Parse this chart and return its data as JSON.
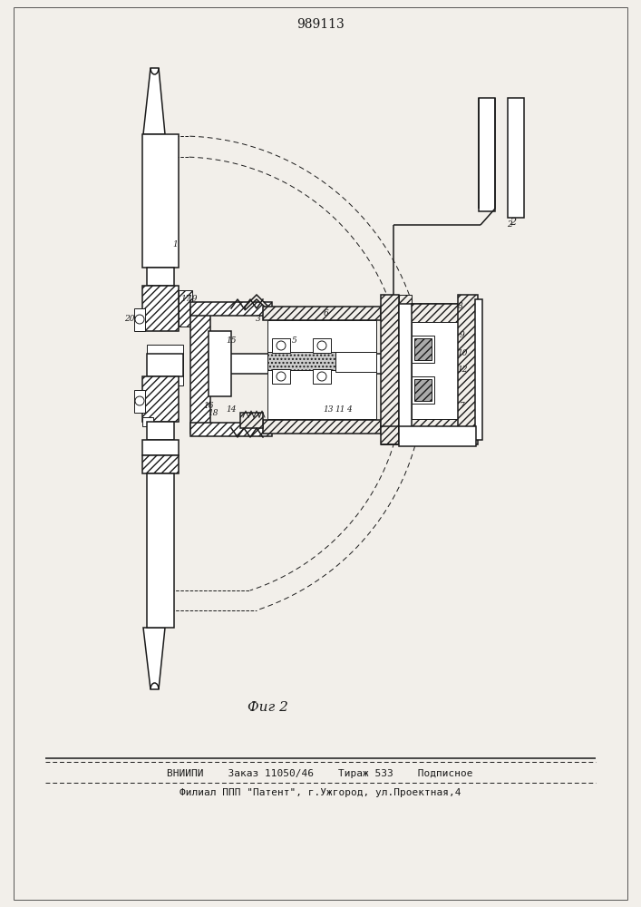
{
  "title": "989113",
  "fig_label": "Фиг 2",
  "footer_line1": "ВНИИПИ    Заказ 11050/46    Тираж 533    Подписное",
  "footer_line2": "Филиал ППП \"Патент\", г.Ужгород, ул.Проектная,4",
  "bg_color": "#f2efea",
  "line_color": "#1a1a1a",
  "page_width": 7.07,
  "page_height": 10.0,
  "dpi": 100
}
